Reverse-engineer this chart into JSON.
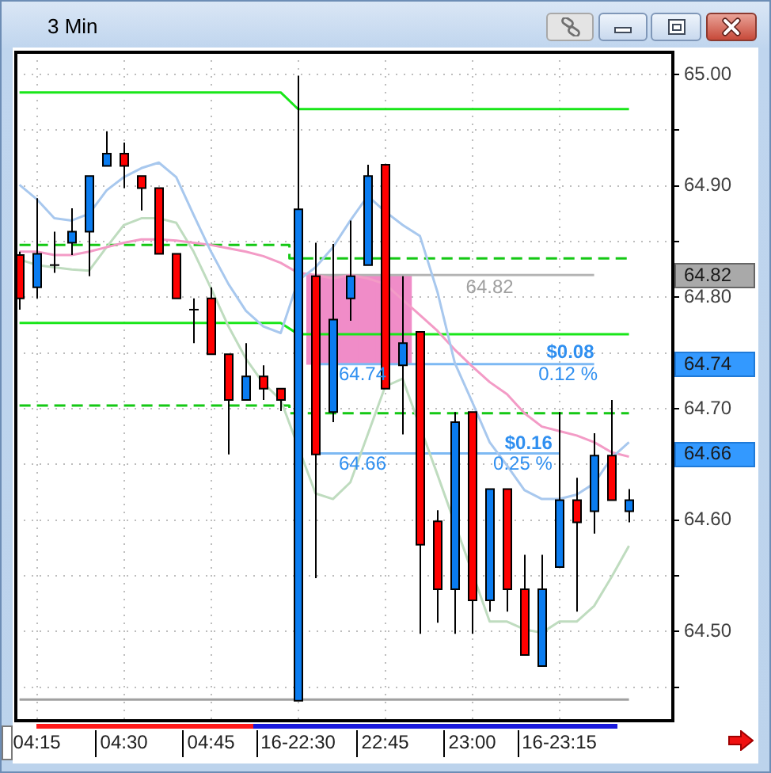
{
  "chart_data": {
    "type": "candlestick",
    "title": "3 Min",
    "categories": [
      null,
      "04:15",
      null,
      null,
      null,
      null,
      "04:30",
      null,
      null,
      null,
      null,
      "04:45",
      null,
      null,
      null,
      null,
      "16-22:30",
      null,
      null,
      null,
      null,
      "22:45",
      null,
      null,
      null,
      null,
      "23:00",
      null,
      null,
      null,
      null,
      "16-23:15",
      null,
      null,
      null,
      null
    ],
    "ohlc": [
      [
        64.838,
        64.841,
        64.789,
        64.799
      ],
      [
        64.809,
        64.889,
        64.799,
        64.839
      ],
      [
        64.829,
        64.859,
        64.822,
        64.829
      ],
      [
        64.849,
        64.88,
        64.838,
        64.859
      ],
      [
        64.859,
        64.909,
        64.819,
        64.909
      ],
      [
        64.918,
        64.949,
        64.918,
        64.929
      ],
      [
        64.929,
        64.939,
        64.898,
        64.918
      ],
      [
        64.909,
        64.909,
        64.878,
        64.898
      ],
      [
        64.898,
        64.898,
        64.839,
        64.839
      ],
      [
        64.839,
        64.839,
        64.799,
        64.799
      ],
      [
        64.789,
        64.799,
        64.759,
        64.789
      ],
      [
        64.799,
        64.809,
        64.749,
        64.749
      ],
      [
        64.749,
        64.749,
        64.659,
        64.708
      ],
      [
        64.708,
        64.759,
        64.708,
        64.729
      ],
      [
        64.729,
        64.739,
        64.708,
        64.718
      ],
      [
        64.718,
        64.718,
        64.698,
        64.708
      ],
      [
        64.438,
        64.999,
        64.438,
        64.879
      ],
      [
        64.819,
        64.849,
        64.548,
        64.659
      ],
      [
        64.697,
        64.848,
        64.688,
        64.78
      ],
      [
        64.799,
        64.869,
        64.779,
        64.819
      ],
      [
        64.829,
        64.919,
        64.829,
        64.909
      ],
      [
        64.919,
        64.919,
        64.718,
        64.718
      ],
      [
        64.739,
        64.819,
        64.677,
        64.759
      ],
      [
        64.769,
        64.769,
        64.498,
        64.578
      ],
      [
        64.599,
        64.609,
        64.508,
        64.538
      ],
      [
        64.538,
        64.697,
        64.498,
        64.688
      ],
      [
        64.697,
        64.697,
        64.498,
        64.528
      ],
      [
        64.528,
        64.628,
        64.518,
        64.628
      ],
      [
        64.628,
        64.628,
        64.518,
        64.538
      ],
      [
        64.538,
        64.569,
        64.479,
        64.479
      ],
      [
        64.469,
        64.569,
        64.469,
        64.538
      ],
      [
        64.558,
        64.697,
        64.558,
        64.618
      ],
      [
        64.618,
        64.638,
        64.518,
        64.598
      ],
      [
        64.608,
        64.678,
        64.588,
        64.658
      ],
      [
        64.658,
        64.708,
        64.618,
        64.618
      ],
      [
        64.608,
        64.628,
        64.598,
        64.618
      ]
    ],
    "colors": [
      "#ff0000",
      "#0a7cf0",
      "#000000",
      "#0a7cf0",
      "#0a7cf0",
      "#0a7cf0",
      "#ff0000",
      "#ff0000",
      "#ff0000",
      "#ff0000",
      "#000000",
      "#ff0000",
      "#ff0000",
      "#0a7cf0",
      "#ff0000",
      "#ff0000",
      "#0a7cf0",
      "#ff0000",
      "#0a7cf0",
      "#0a7cf0",
      "#0a7cf0",
      "#ff0000",
      "#0a7cf0",
      "#ff0000",
      "#ff0000",
      "#0a7cf0",
      "#ff0000",
      "#0a7cf0",
      "#ff0000",
      "#ff0000",
      "#0a7cf0",
      "#0a7cf0",
      "#ff0000",
      "#0a7cf0",
      "#ff0000",
      "#0a7cf0"
    ],
    "series": [
      {
        "type": "line",
        "color": "#a8c8ee",
        "values": [
          64.901,
          64.888,
          64.871,
          64.869,
          64.875,
          64.896,
          64.908,
          64.916,
          64.921,
          64.908,
          64.874,
          64.841,
          64.812,
          64.788,
          64.774,
          64.768,
          64.815,
          64.827,
          64.845,
          64.869,
          64.891,
          64.877,
          64.865,
          64.855,
          64.805,
          64.741,
          64.706,
          64.67,
          64.649,
          64.627,
          64.619,
          64.619,
          64.623,
          64.633,
          64.656,
          64.67
        ]
      },
      {
        "type": "line",
        "color": "#f39bc6",
        "values": [
          64.841,
          64.841,
          64.838,
          64.838,
          64.841,
          64.845,
          64.849,
          64.852,
          64.852,
          64.851,
          64.849,
          64.847,
          64.844,
          64.841,
          64.837,
          64.831,
          64.822,
          64.82,
          64.817,
          64.82,
          64.817,
          64.812,
          64.798,
          64.784,
          64.77,
          64.753,
          64.738,
          64.724,
          64.713,
          64.696,
          64.684,
          64.68,
          64.676,
          64.67,
          64.661,
          64.657
        ]
      },
      {
        "type": "line",
        "color": "#bfdcbf",
        "values": [
          64.834,
          64.829,
          64.827,
          64.825,
          64.824,
          64.845,
          64.865,
          64.871,
          64.871,
          64.867,
          64.841,
          64.808,
          64.774,
          64.745,
          64.723,
          64.708,
          null,
          64.624,
          64.619,
          64.634,
          64.677,
          64.72,
          64.727,
          null,
          64.641,
          null,
          null,
          64.509,
          64.509,
          64.502,
          64.499,
          64.509,
          64.509,
          64.523,
          64.549,
          64.577
        ]
      },
      {
        "type": "line",
        "color": "#19e619",
        "values": [
          64.984,
          64.984,
          64.984,
          64.984,
          64.984,
          64.984,
          64.984,
          64.984,
          64.984,
          64.984,
          64.984,
          64.984,
          64.984,
          64.984,
          64.984,
          64.984,
          64.969,
          64.969,
          64.969,
          64.969,
          64.969,
          64.969,
          64.969,
          64.969,
          64.969,
          64.969,
          64.969,
          64.969,
          64.969,
          64.969,
          64.969,
          64.969,
          64.969,
          64.969,
          64.969,
          64.969
        ]
      },
      {
        "type": "line",
        "color": "#19e619",
        "values": [
          64.777,
          64.777,
          64.777,
          64.777,
          64.777,
          64.777,
          64.777,
          64.777,
          64.777,
          64.777,
          64.777,
          64.777,
          64.777,
          64.777,
          64.777,
          64.777,
          64.767,
          64.767,
          64.767,
          64.767,
          64.767,
          64.767,
          64.767,
          64.767,
          64.767,
          64.767,
          64.767,
          64.767,
          64.767,
          64.767,
          64.767,
          64.767,
          64.767,
          64.767,
          64.767,
          64.767
        ]
      },
      {
        "type": "step",
        "color": "#14c814",
        "line_style": "dashed",
        "values": [
          64.847,
          64.847,
          64.847,
          64.847,
          64.847,
          64.847,
          64.847,
          64.847,
          64.847,
          64.847,
          64.847,
          64.847,
          64.847,
          64.847,
          64.847,
          64.847,
          64.835,
          64.835,
          64.835,
          64.835,
          64.835,
          64.835,
          64.835,
          64.835,
          64.835,
          64.835,
          64.835,
          64.835,
          64.835,
          64.835,
          64.835,
          64.835,
          64.835,
          64.835,
          64.835,
          64.835
        ]
      },
      {
        "type": "step",
        "color": "#14c814",
        "line_style": "dashed",
        "values": [
          64.703,
          64.703,
          64.703,
          64.703,
          64.703,
          64.703,
          64.703,
          64.703,
          64.703,
          64.703,
          64.703,
          64.703,
          64.703,
          64.703,
          64.703,
          64.703,
          64.696,
          64.696,
          64.696,
          64.696,
          64.696,
          64.696,
          64.696,
          64.696,
          64.696,
          64.696,
          64.696,
          64.696,
          64.696,
          64.696,
          64.696,
          64.696,
          64.696,
          64.696,
          64.696,
          64.696
        ]
      },
      {
        "type": "line",
        "color": "#a0a0a0",
        "values": [
          64.439,
          64.439,
          64.439,
          64.439,
          64.439,
          64.439,
          64.439,
          64.439,
          64.439,
          64.439,
          64.439,
          64.439,
          64.439,
          64.439,
          64.439,
          64.439,
          64.439,
          64.439,
          64.439,
          64.439,
          64.439,
          64.439,
          64.439,
          64.439,
          64.439,
          64.439,
          64.439,
          64.439,
          64.439,
          64.439,
          64.439,
          64.439,
          64.439,
          64.439,
          64.439,
          64.439
        ]
      },
      {
        "type": "line",
        "color": "#b4b4b4",
        "values": [
          null,
          null,
          null,
          null,
          null,
          null,
          null,
          null,
          null,
          null,
          null,
          null,
          null,
          null,
          null,
          null,
          null,
          64.82,
          64.82,
          64.82,
          64.82,
          64.82,
          64.82,
          64.82,
          64.82,
          64.82,
          64.82,
          64.82,
          64.82,
          64.82,
          64.82,
          64.82,
          64.82,
          64.82,
          null,
          null
        ]
      },
      {
        "type": "line",
        "color": "#7db9f3",
        "values": [
          null,
          null,
          null,
          null,
          null,
          null,
          null,
          null,
          null,
          null,
          null,
          null,
          null,
          null,
          null,
          null,
          null,
          64.74,
          64.74,
          64.74,
          64.74,
          64.74,
          64.74,
          64.74,
          64.74,
          64.74,
          64.74,
          64.74,
          64.74,
          64.74,
          64.74,
          64.74,
          64.74,
          64.74,
          null,
          null
        ]
      },
      {
        "type": "line",
        "color": "#7db9f3",
        "values": [
          null,
          null,
          null,
          null,
          null,
          null,
          null,
          null,
          null,
          null,
          null,
          null,
          null,
          null,
          null,
          null,
          null,
          64.66,
          64.66,
          64.66,
          64.66,
          64.66,
          64.66,
          64.66,
          64.66,
          64.66,
          64.66,
          64.66,
          64.66,
          64.66,
          64.66,
          64.66,
          null,
          null,
          null,
          null
        ]
      },
      {
        "type": "bar",
        "color": "#f08cc8",
        "values": [
          null,
          null,
          null,
          null,
          null,
          null,
          null,
          null,
          null,
          null,
          null,
          null,
          null,
          null,
          null,
          null,
          null,
          0.08,
          0.08,
          0.08,
          0.08,
          0.08,
          0.08,
          null,
          null,
          null,
          null,
          null,
          null,
          null,
          null,
          null,
          null,
          null,
          null,
          null
        ],
        "base": [
          null,
          null,
          null,
          null,
          null,
          null,
          null,
          null,
          null,
          null,
          null,
          null,
          null,
          null,
          null,
          null,
          null,
          64.74,
          64.74,
          64.74,
          64.74,
          64.74,
          64.74,
          null,
          null,
          null,
          null,
          null,
          null,
          null,
          null,
          null,
          null,
          null,
          null,
          null
        ]
      }
    ],
    "ylim": [
      64.42,
      65.02
    ],
    "yticks": [
      {
        "value": 64.45,
        "label": null
      },
      {
        "value": 64.5,
        "label": "64.50"
      },
      {
        "value": 64.55,
        "label": null
      },
      {
        "value": 64.6,
        "label": "64.60"
      },
      {
        "value": 64.65,
        "label": null
      },
      {
        "value": 64.7,
        "label": "64.70"
      },
      {
        "value": 64.75,
        "label": null
      },
      {
        "value": 64.8,
        "label": "64.80"
      },
      {
        "value": 64.85,
        "label": null
      },
      {
        "value": 64.9,
        "label": "64.90"
      },
      {
        "value": 64.95,
        "label": null
      },
      {
        "value": 65.0,
        "label": "65.00"
      }
    ],
    "grid": true,
    "annotations": [
      "64.82",
      {
        "text": "64.74",
        "y": 64.74
      },
      {
        "text": "$0.08",
        "y": 64.74
      },
      {
        "text": "0.12 %",
        "y": 64.74
      },
      {
        "text": "64.66",
        "y": 64.66
      },
      {
        "text": "$0.16",
        "y": 64.66
      },
      {
        "text": "0.25 %",
        "y": 64.66
      },
      "64.82",
      "64.74",
      "64.66"
    ]
  }
}
